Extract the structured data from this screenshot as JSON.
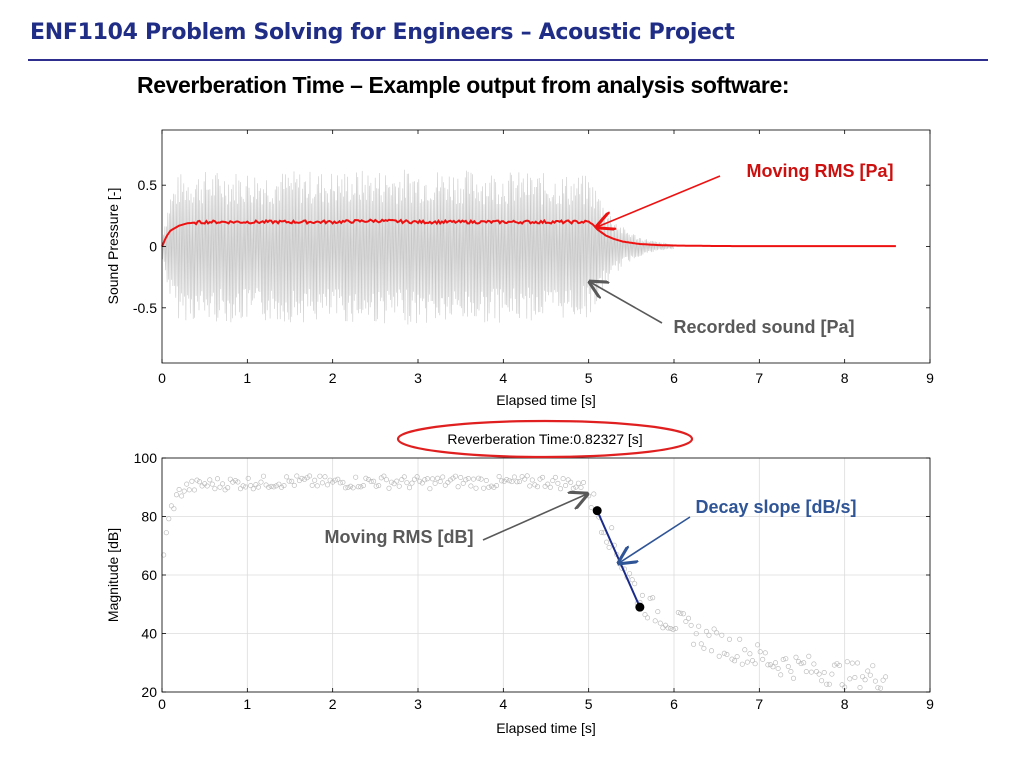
{
  "slide": {
    "title": "ENF1104 Problem Solving for Engineers – Acoustic Project",
    "heading": "Reverberation Time – Example output from analysis software:"
  },
  "colors": {
    "title": "#1f2d86",
    "rms_line": "#ee1111",
    "raw_signal": "#c8c8c8",
    "decay_line": "#1a2a8a",
    "decay_label": "#2f5597",
    "annotation_gray": "#595959",
    "ellipse": "#e02020"
  },
  "chart_data": [
    {
      "type": "line",
      "xlabel": "Elapsed time [s]",
      "ylabel": "Sound Pressure [-]",
      "xlim": [
        0,
        9
      ],
      "ylim": [
        -0.95,
        0.95
      ],
      "xticks": [
        "0",
        "1",
        "2",
        "3",
        "4",
        "5",
        "6",
        "7",
        "8",
        "9"
      ],
      "yticks": [
        "-0.5",
        "0",
        "0.5"
      ],
      "grid": false,
      "series": [
        {
          "name": "Moving RMS  [Pa]",
          "x": [
            0,
            0.05,
            0.1,
            0.2,
            0.3,
            0.5,
            1,
            1.5,
            2,
            2.5,
            3,
            3.5,
            4,
            4.5,
            5,
            5.05,
            5.1,
            5.2,
            5.3,
            5.4,
            5.5,
            5.6,
            5.8,
            6,
            6.5,
            7,
            7.5,
            8,
            8.6
          ],
          "y": [
            0,
            0.08,
            0.13,
            0.17,
            0.19,
            0.2,
            0.2,
            0.2,
            0.2,
            0.21,
            0.2,
            0.2,
            0.2,
            0.2,
            0.2,
            0.18,
            0.14,
            0.09,
            0.06,
            0.04,
            0.03,
            0.02,
            0.012,
            0.008,
            0.004,
            0.003,
            0.003,
            0.003,
            0.003
          ]
        },
        {
          "name": "Recorded sound [Pa]",
          "x": [
            0,
            0.1,
            0.2,
            0.5,
            1,
            2,
            3,
            4,
            4.5,
            5,
            5.1,
            5.2,
            5.4,
            5.6,
            5.8,
            6.0
          ],
          "y_amplitude": [
            0.1,
            0.45,
            0.6,
            0.62,
            0.62,
            0.62,
            0.64,
            0.62,
            0.6,
            0.58,
            0.48,
            0.32,
            0.16,
            0.08,
            0.04,
            0.02
          ]
        }
      ],
      "annotations": [
        {
          "text": "Moving RMS  [Pa]",
          "x": 5.1,
          "y": 0.2
        },
        {
          "text": "Recorded sound [Pa]",
          "x": 5.0,
          "y": -0.3
        }
      ]
    },
    {
      "type": "scatter",
      "title": "Reverberation Time:0.82327 [s]",
      "xlabel": "Elapsed time [s]",
      "ylabel": "Magnitude [dB]",
      "xlim": [
        0,
        9
      ],
      "ylim": [
        20,
        100
      ],
      "xticks": [
        "0",
        "1",
        "2",
        "3",
        "4",
        "5",
        "6",
        "7",
        "8",
        "9"
      ],
      "yticks": [
        "20",
        "40",
        "60",
        "80",
        "100"
      ],
      "grid": true,
      "series": [
        {
          "name": "Moving RMS  [dB]",
          "x": [
            0.02,
            0.1,
            0.2,
            0.3,
            0.5,
            1,
            1.5,
            2,
            2.5,
            3,
            3.5,
            4,
            4.5,
            4.9,
            5.0,
            5.1,
            5.2,
            5.3,
            5.4,
            5.5,
            5.6,
            5.7,
            5.8,
            6.0,
            6.2,
            6.4,
            6.6,
            6.8,
            7.0,
            7.2,
            7.4,
            7.6,
            7.8,
            8.0,
            8.2,
            8.5
          ],
          "y": [
            68,
            82,
            88,
            90,
            91,
            91.5,
            92,
            91.5,
            92,
            91.5,
            92,
            91.5,
            92,
            91,
            88,
            82,
            76,
            70,
            64,
            58,
            52,
            49,
            47,
            44,
            41,
            38,
            36,
            34,
            32,
            30,
            29,
            28,
            27,
            26,
            26,
            25
          ]
        },
        {
          "name": "Decay slope [dB/s]",
          "x": [
            5.1,
            5.6
          ],
          "y": [
            82,
            49
          ]
        }
      ],
      "annotations": [
        {
          "text": "Moving RMS  [dB]",
          "x": 5.0,
          "y": 88
        },
        {
          "text": "Decay slope [dB/s]",
          "x": 5.35,
          "y": 64
        }
      ]
    }
  ]
}
